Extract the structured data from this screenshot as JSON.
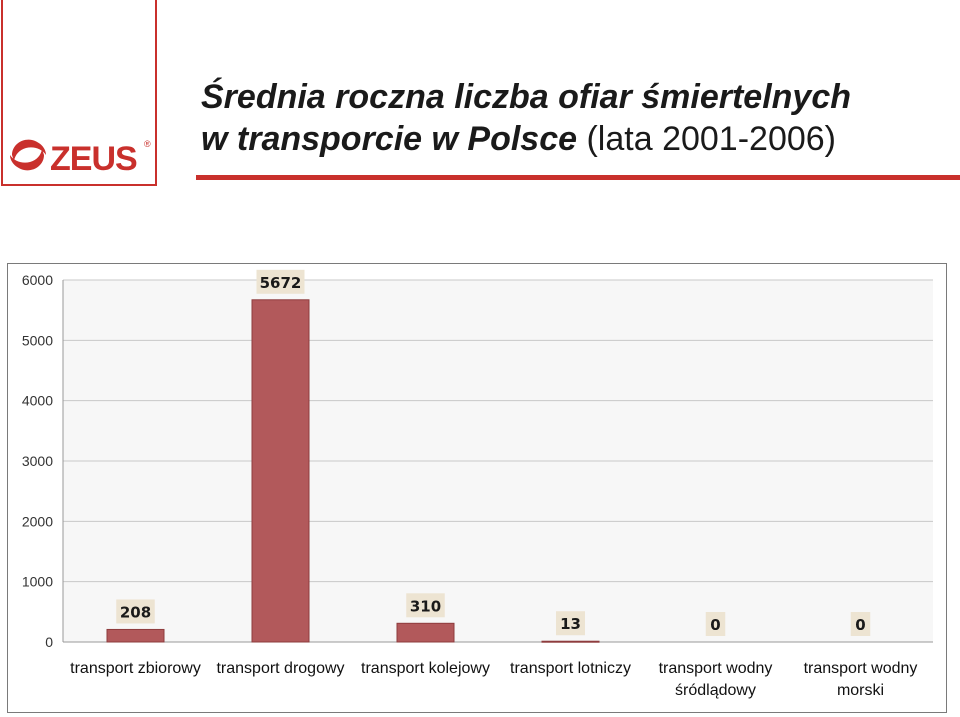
{
  "logo": {
    "text": "ZEUS",
    "reg": "®",
    "brand_color": "#c9302c"
  },
  "title": {
    "line1": "Średnia roczna liczba ofiar śmiertelnych",
    "line2_bold": "w transporcie w Polsce",
    "line2_years": "(lata 2001-2006)"
  },
  "colors": {
    "bar": "#b2595b",
    "accent": "#c9302c"
  },
  "chart_data": {
    "type": "bar",
    "title": "",
    "xlabel": "",
    "ylabel": "",
    "ylim": [
      0,
      6000
    ],
    "yticks": [
      "0",
      "1000",
      "2000",
      "3000",
      "4000",
      "5000",
      "6000"
    ],
    "categories": [
      [
        "transport zbiorowy"
      ],
      [
        "transport drogowy"
      ],
      [
        "transport kolejowy"
      ],
      [
        "transport lotniczy"
      ],
      [
        "transport wodny",
        "śródlądowy"
      ],
      [
        "transport wodny",
        "morski"
      ]
    ],
    "values": [
      208,
      5672,
      310,
      13,
      0,
      0
    ],
    "data_labels": [
      "208",
      "5672",
      "310",
      "13",
      "0",
      "0"
    ],
    "grid": true,
    "legend": "none"
  }
}
